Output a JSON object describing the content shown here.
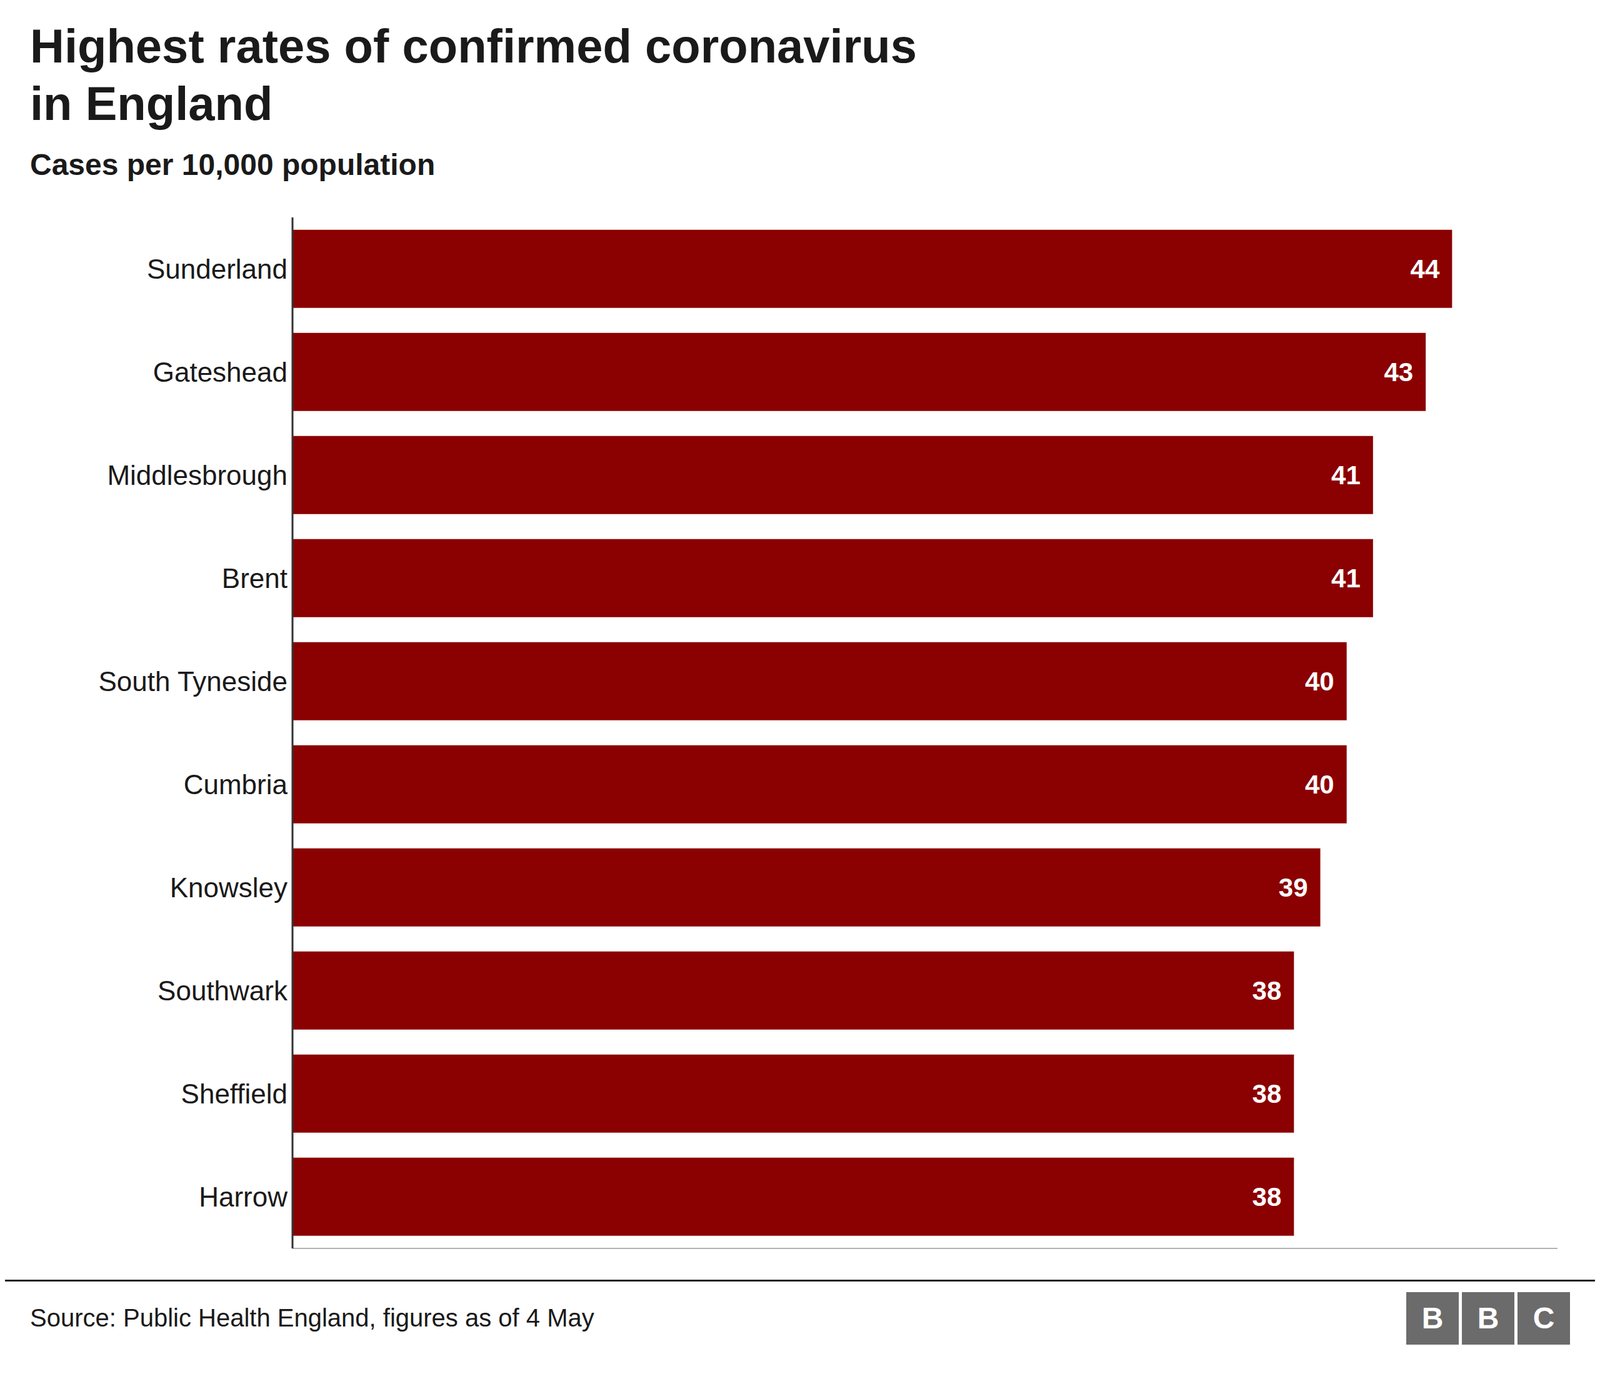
{
  "chart_data": {
    "type": "bar",
    "title": "Highest rates of confirmed coronavirus\nin England",
    "subtitle": "Cases per 10,000 population",
    "annotations": [
      "Source: Public Health England, figures as of 4 May"
    ],
    "logo": [
      "B",
      "B",
      "C"
    ],
    "categories": [
      "Sunderland",
      "Gateshead",
      "Middlesbrough",
      "Brent",
      "South Tyneside",
      "Cumbria",
      "Knowsley",
      "Southwark",
      "Sheffield",
      "Harrow"
    ],
    "values": [
      44,
      43,
      41,
      41,
      40,
      40,
      39,
      38,
      38,
      38
    ],
    "color": "#8B0000",
    "xlim": [
      0,
      48
    ],
    "orientation": "horizontal",
    "data_labels": true,
    "grid": false,
    "tick_labels": "y"
  }
}
